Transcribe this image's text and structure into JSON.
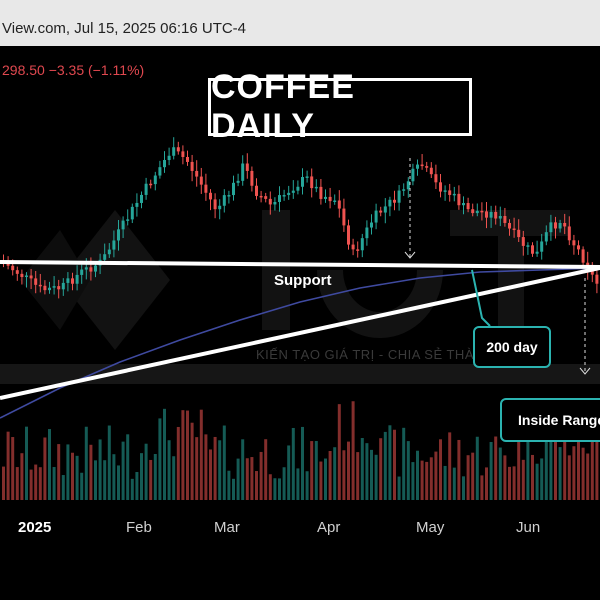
{
  "header": {
    "source_text": "View.com, Jul 15, 2025 06:16 UTC-4",
    "quote": "298.50  −3.35 (−1.11%)"
  },
  "title": "COFFEE DAILY",
  "annotations": {
    "support": "Support",
    "ma200": "200 day",
    "inside_range": "Inside Range",
    "watermark_text": "KIẾN TẠO GIÁ TRỊ - CHIA SẺ THÀNH CÔNG"
  },
  "colors": {
    "up": "#26a69a",
    "down": "#ef5350",
    "ma": "#3f4aa0",
    "trend": "#ffffff",
    "callout": "#2bb3b0"
  },
  "chart_data": {
    "type": "candlestick",
    "title": "COFFEE DAILY",
    "x_axis_labels": [
      "2025",
      "Feb",
      "Mar",
      "Apr",
      "May",
      "Jun"
    ],
    "series": [
      {
        "name": "200 day",
        "kind": "moving_average"
      }
    ],
    "lines": [
      {
        "label": "Support",
        "kind": "horizontal-ish support"
      },
      {
        "label": "",
        "kind": "rising trendline"
      }
    ],
    "annotations": [
      "Support",
      "200 day",
      "Inside Range"
    ],
    "last_change": {
      "price": 298.5,
      "change": -3.35,
      "change_pct": -1.11
    },
    "has_volume": true,
    "grid": false
  }
}
